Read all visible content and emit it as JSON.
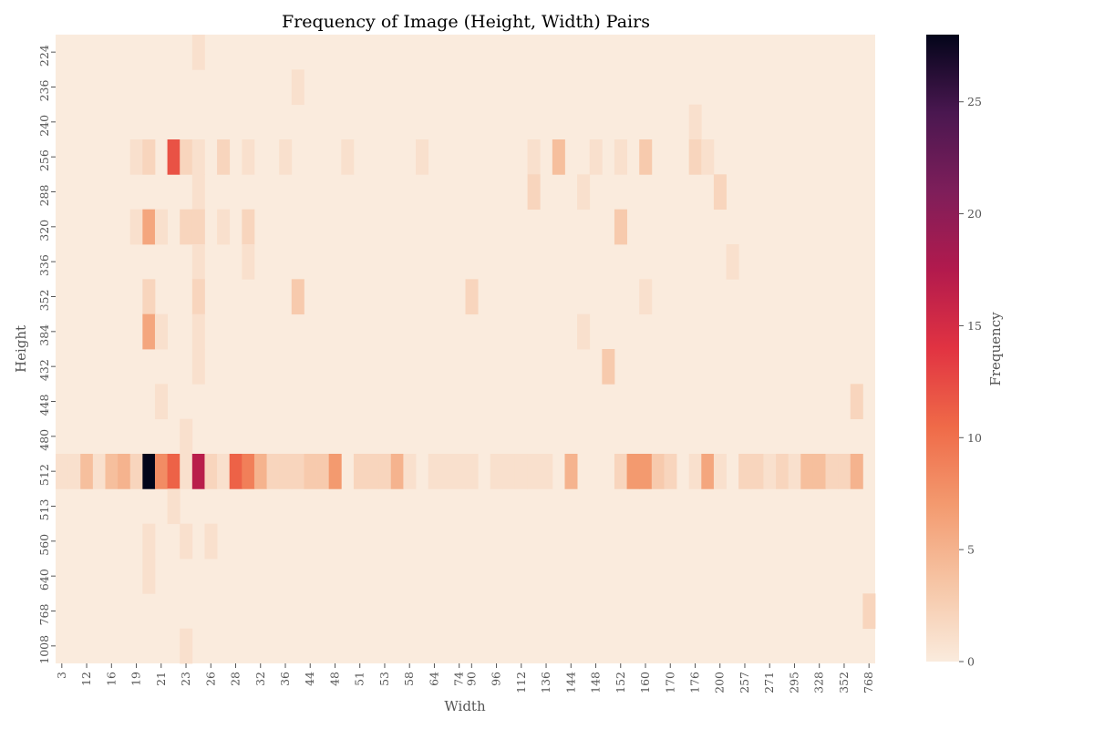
{
  "chart_data": {
    "type": "heatmap",
    "title": "Frequency of Image (Height, Width) Pairs",
    "xlabel": "Width",
    "ylabel": "Height",
    "colorbar_label": "Frequency",
    "colorbar_ticks": [
      0,
      5,
      10,
      15,
      20,
      25
    ],
    "vmin": 0,
    "vmax": 28,
    "colormap": "rocket_r",
    "x_tick_labels": [
      "3",
      "12",
      "16",
      "19",
      "21",
      "23",
      "26",
      "28",
      "32",
      "36",
      "44",
      "48",
      "51",
      "53",
      "58",
      "64",
      "74",
      "90",
      "96",
      "112",
      "136",
      "144",
      "148",
      "152",
      "160",
      "170",
      "176",
      "200",
      "257",
      "271",
      "295",
      "328",
      "352",
      "768"
    ],
    "y_categories": [
      "224",
      "236",
      "240",
      "256",
      "288",
      "320",
      "336",
      "352",
      "384",
      "432",
      "448",
      "480",
      "512",
      "513",
      "560",
      "640",
      "768",
      "1008"
    ],
    "x_column_count": 66,
    "cells": [
      [
        0,
        11,
        1
      ],
      [
        1,
        19,
        1
      ],
      [
        2,
        51,
        1
      ],
      [
        3,
        6,
        1
      ],
      [
        3,
        7,
        2
      ],
      [
        3,
        9,
        12
      ],
      [
        3,
        10,
        2
      ],
      [
        3,
        11,
        1
      ],
      [
        3,
        13,
        2
      ],
      [
        3,
        15,
        1
      ],
      [
        3,
        18,
        1
      ],
      [
        3,
        23,
        1
      ],
      [
        3,
        29,
        1
      ],
      [
        3,
        38,
        1
      ],
      [
        3,
        40,
        4
      ],
      [
        3,
        43,
        1
      ],
      [
        3,
        45,
        1
      ],
      [
        3,
        47,
        3
      ],
      [
        3,
        51,
        2
      ],
      [
        3,
        52,
        1
      ],
      [
        4,
        11,
        1
      ],
      [
        4,
        38,
        2
      ],
      [
        4,
        42,
        1
      ],
      [
        4,
        53,
        2
      ],
      [
        5,
        6,
        1
      ],
      [
        5,
        7,
        6
      ],
      [
        5,
        8,
        1
      ],
      [
        5,
        10,
        2
      ],
      [
        5,
        11,
        2
      ],
      [
        5,
        13,
        1
      ],
      [
        5,
        15,
        2
      ],
      [
        5,
        45,
        3
      ],
      [
        6,
        11,
        1
      ],
      [
        6,
        15,
        1
      ],
      [
        6,
        54,
        1
      ],
      [
        7,
        7,
        2
      ],
      [
        7,
        11,
        2
      ],
      [
        7,
        19,
        3
      ],
      [
        7,
        33,
        2
      ],
      [
        7,
        47,
        1
      ],
      [
        8,
        7,
        6
      ],
      [
        8,
        8,
        1
      ],
      [
        8,
        11,
        1
      ],
      [
        8,
        42,
        1
      ],
      [
        9,
        11,
        1
      ],
      [
        9,
        44,
        3
      ],
      [
        10,
        8,
        1
      ],
      [
        10,
        64,
        2
      ],
      [
        11,
        10,
        1
      ],
      [
        12,
        0,
        1
      ],
      [
        12,
        1,
        1
      ],
      [
        12,
        2,
        4
      ],
      [
        12,
        3,
        1
      ],
      [
        12,
        4,
        4
      ],
      [
        12,
        5,
        5
      ],
      [
        12,
        6,
        2
      ],
      [
        12,
        7,
        28
      ],
      [
        12,
        8,
        8
      ],
      [
        12,
        9,
        11
      ],
      [
        12,
        10,
        1
      ],
      [
        12,
        11,
        17
      ],
      [
        12,
        12,
        2
      ],
      [
        12,
        13,
        1
      ],
      [
        12,
        14,
        11
      ],
      [
        12,
        15,
        9
      ],
      [
        12,
        16,
        5
      ],
      [
        12,
        17,
        2
      ],
      [
        12,
        18,
        2
      ],
      [
        12,
        19,
        2
      ],
      [
        12,
        20,
        3
      ],
      [
        12,
        21,
        3
      ],
      [
        12,
        22,
        7
      ],
      [
        12,
        24,
        2
      ],
      [
        12,
        25,
        2
      ],
      [
        12,
        26,
        2
      ],
      [
        12,
        27,
        5
      ],
      [
        12,
        28,
        1
      ],
      [
        12,
        30,
        1
      ],
      [
        12,
        31,
        1
      ],
      [
        12,
        32,
        1
      ],
      [
        12,
        33,
        1
      ],
      [
        12,
        35,
        1
      ],
      [
        12,
        36,
        1
      ],
      [
        12,
        37,
        1
      ],
      [
        12,
        38,
        1
      ],
      [
        12,
        39,
        1
      ],
      [
        12,
        41,
        5
      ],
      [
        12,
        45,
        2
      ],
      [
        12,
        46,
        7
      ],
      [
        12,
        47,
        7
      ],
      [
        12,
        48,
        3
      ],
      [
        12,
        49,
        2
      ],
      [
        12,
        51,
        1
      ],
      [
        12,
        52,
        6
      ],
      [
        12,
        53,
        1
      ],
      [
        12,
        55,
        2
      ],
      [
        12,
        56,
        2
      ],
      [
        12,
        57,
        1
      ],
      [
        12,
        58,
        2
      ],
      [
        12,
        59,
        1
      ],
      [
        12,
        60,
        4
      ],
      [
        12,
        61,
        4
      ],
      [
        12,
        62,
        2
      ],
      [
        12,
        63,
        2
      ],
      [
        12,
        64,
        5
      ],
      [
        13,
        9,
        1
      ],
      [
        14,
        7,
        1
      ],
      [
        14,
        10,
        1
      ],
      [
        14,
        12,
        1
      ],
      [
        15,
        7,
        1
      ],
      [
        16,
        65,
        2
      ],
      [
        17,
        10,
        1
      ]
    ]
  }
}
